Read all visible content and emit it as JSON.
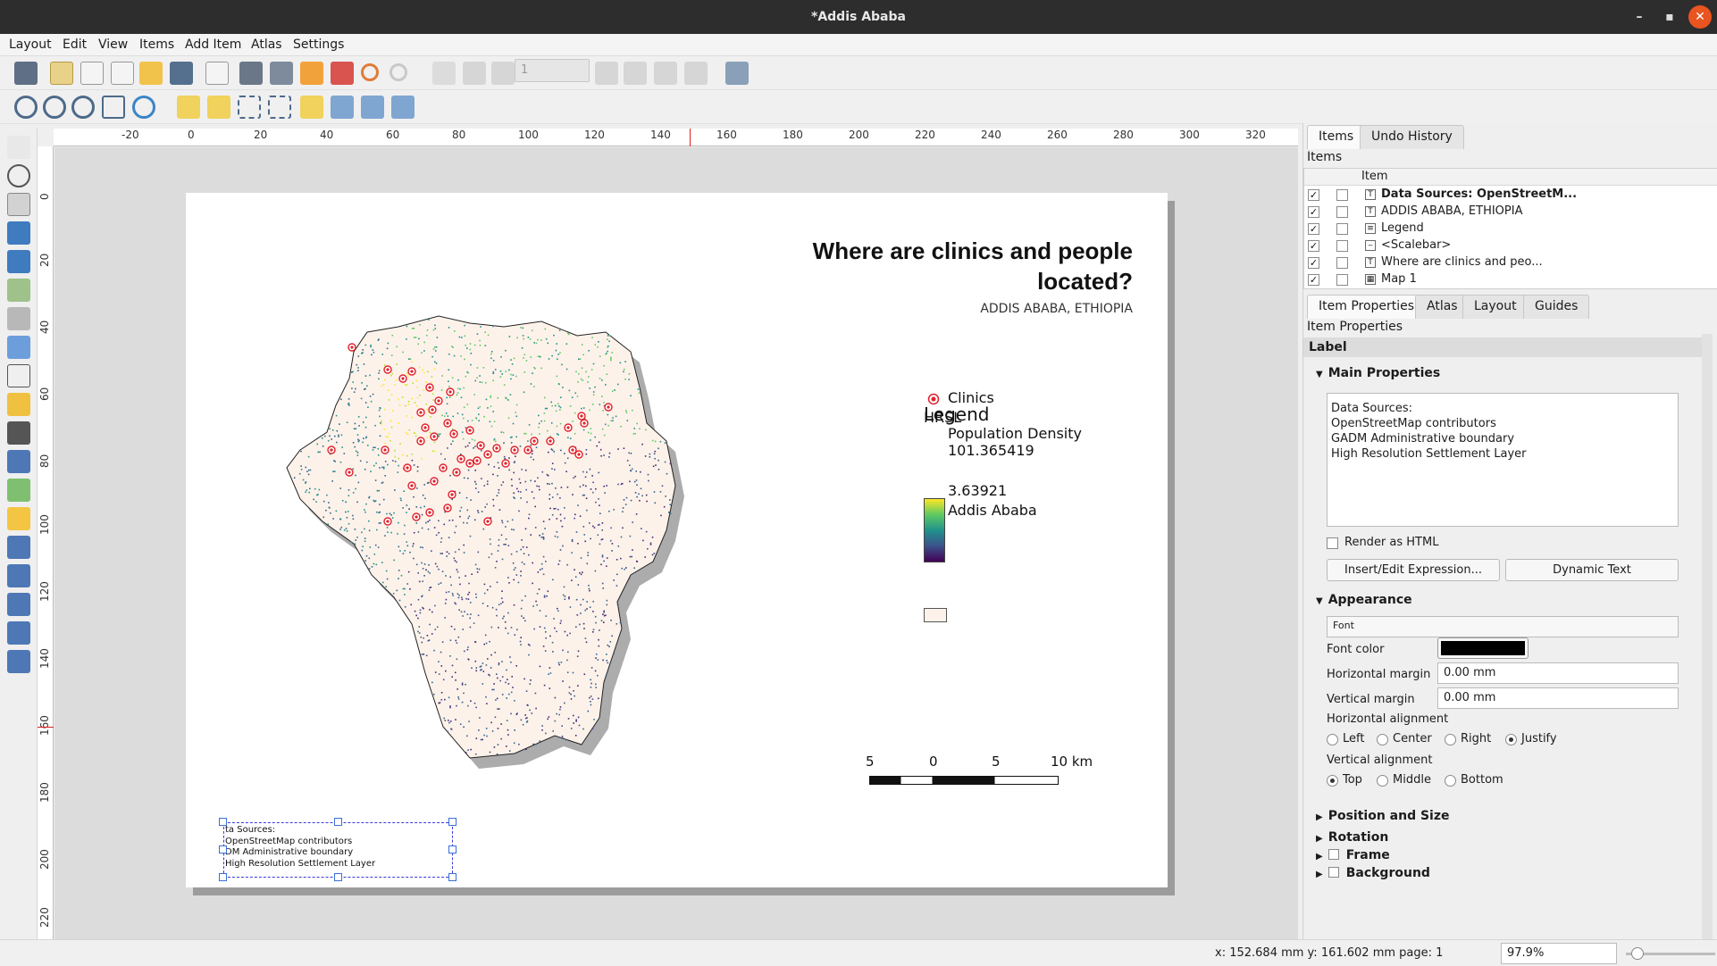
{
  "window": {
    "title": "*Addis Ababa",
    "minimize": "–",
    "maximize": "▪",
    "close": "✕"
  },
  "menu": [
    "Layout",
    "Edit",
    "View",
    "Items",
    "Add Item",
    "Atlas",
    "Settings"
  ],
  "toolbar": {
    "page_number": "1"
  },
  "ruler_top": [
    "-20",
    "0",
    "20",
    "40",
    "60",
    "80",
    "100",
    "120",
    "140",
    "160",
    "180",
    "200",
    "220",
    "240",
    "260",
    "280",
    "300",
    "320"
  ],
  "ruler_left": [
    "0",
    "20",
    "40",
    "60",
    "80",
    "100",
    "120",
    "140",
    "160",
    "180",
    "200",
    "220"
  ],
  "layout": {
    "title": "Where are clinics and people located?",
    "subtitle": "ADDIS ABABA, ETHIOPIA",
    "legend": {
      "title": "Legend",
      "clinics": "Clinics",
      "hrsl": "HRSL",
      "pop_density": "Population Density",
      "max": "101.365419",
      "min": "3.63921",
      "area": "Addis Ababa"
    },
    "scalebar": {
      "labels": [
        "5",
        "0",
        "5",
        "10 km"
      ]
    },
    "sources_lines": [
      "ta Sources:",
      "OpenStreetMap contributors",
      "DM Administrative boundary",
      "High Resolution Settlement Layer"
    ]
  },
  "colors": {
    "clinic": "#e0212b",
    "boundary_fill": "#fdf2ea",
    "viridis_high": "#fde725",
    "viridis_low": "#440154",
    "selection": "#3a3ad8"
  },
  "panel": {
    "tabs_top": [
      "Items",
      "Undo History"
    ],
    "items_label": "Items",
    "items_header": "Item",
    "items": [
      {
        "name": "Data Sources: OpenStreetM...",
        "icon": "text-icon",
        "bold": true
      },
      {
        "name": "ADDIS ABABA, ETHIOPIA",
        "icon": "text-icon",
        "bold": false
      },
      {
        "name": "Legend",
        "icon": "legend-icon",
        "bold": false
      },
      {
        "name": "<Scalebar>",
        "icon": "scalebar-icon",
        "bold": false
      },
      {
        "name": "Where are clinics and peo...",
        "icon": "text-icon",
        "bold": false
      },
      {
        "name": "Map 1",
        "icon": "map-icon",
        "bold": false
      }
    ],
    "tabs_bottom": [
      "Item Properties",
      "Atlas",
      "Layout",
      "Guides"
    ],
    "props_label": "Item Properties",
    "item_type": "Label",
    "main_properties": "Main Properties",
    "label_text": "Data Sources:\nOpenStreetMap contributors\nGADM Administrative boundary\nHigh Resolution Settlement Layer",
    "render_html": "Render as HTML",
    "insert_expr": "Insert/Edit Expression...",
    "dynamic_text": "Dynamic Text",
    "appearance": "Appearance",
    "font": "Font",
    "font_color": "Font color",
    "h_margin": "Horizontal margin",
    "h_margin_val": "0.00 mm",
    "v_margin": "Vertical margin",
    "v_margin_val": "0.00 mm",
    "h_align": "Horizontal alignment",
    "h_opts": [
      "Left",
      "Center",
      "Right",
      "Justify"
    ],
    "v_align": "Vertical alignment",
    "v_opts": [
      "Top",
      "Middle",
      "Bottom"
    ],
    "sections": [
      "Position and Size",
      "Rotation",
      "Frame",
      "Background"
    ]
  },
  "status": {
    "coords": "x: 152.684 mm  y: 161.602 mm  page: 1",
    "zoom": "97.9%"
  }
}
